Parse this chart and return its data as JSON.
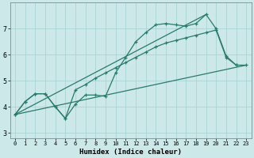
{
  "xlabel": "Humidex (Indice chaleur)",
  "background_color": "#cce8e8",
  "grid_color": "#aad4d4",
  "line_color": "#2a7a6a",
  "xlim": [
    -0.5,
    23.5
  ],
  "ylim": [
    2.8,
    8.0
  ],
  "xticks": [
    0,
    1,
    2,
    3,
    4,
    5,
    6,
    7,
    8,
    9,
    10,
    11,
    12,
    13,
    14,
    15,
    16,
    17,
    18,
    19,
    20,
    21,
    22,
    23
  ],
  "yticks": [
    3,
    4,
    5,
    6,
    7
  ],
  "line1_x": [
    0,
    1,
    2,
    3,
    4,
    5,
    6,
    7,
    8,
    9,
    10,
    11,
    12,
    13,
    14,
    15,
    16,
    17,
    18,
    19,
    20,
    21,
    22
  ],
  "line1_y": [
    3.7,
    4.2,
    4.5,
    4.5,
    4.0,
    3.55,
    4.1,
    4.45,
    4.45,
    4.4,
    5.3,
    5.9,
    6.5,
    6.85,
    7.15,
    7.2,
    7.15,
    7.1,
    7.2,
    7.55,
    7.0,
    5.95,
    5.6
  ],
  "line2_x": [
    0,
    1,
    2,
    3,
    4,
    5,
    6,
    7,
    8,
    9,
    10,
    11,
    12,
    13,
    14,
    15,
    16,
    17,
    18,
    19,
    20,
    21,
    22,
    23
  ],
  "line2_y": [
    3.7,
    4.2,
    4.5,
    4.5,
    4.0,
    3.55,
    4.65,
    4.85,
    5.1,
    5.3,
    5.5,
    5.7,
    5.9,
    6.1,
    6.3,
    6.45,
    6.55,
    6.65,
    6.75,
    6.85,
    6.95,
    5.9,
    5.6,
    5.6
  ],
  "line3_x": [
    0,
    23
  ],
  "line3_y": [
    3.7,
    5.6
  ],
  "line4_x": [
    0,
    19
  ],
  "line4_y": [
    3.7,
    7.55
  ]
}
